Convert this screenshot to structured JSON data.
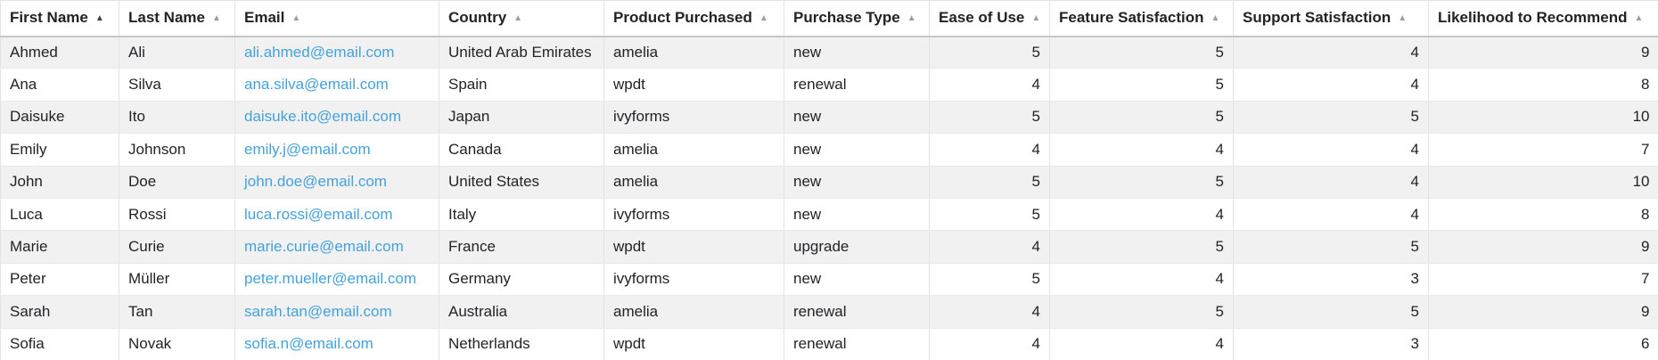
{
  "table": {
    "columns": [
      {
        "label": "First Name",
        "type": "text",
        "sort_icon": "asc",
        "sort_active": true
      },
      {
        "label": "Last Name",
        "type": "text",
        "sort_icon": "asc",
        "sort_active": false
      },
      {
        "label": "Email",
        "type": "link",
        "sort_icon": "asc",
        "sort_active": false
      },
      {
        "label": "Country",
        "type": "text",
        "sort_icon": "asc",
        "sort_active": false
      },
      {
        "label": "Product Purchased",
        "type": "text",
        "sort_icon": "asc",
        "sort_active": false
      },
      {
        "label": "Purchase Type",
        "type": "text",
        "sort_icon": "asc",
        "sort_active": false
      },
      {
        "label": "Ease of Use",
        "type": "number",
        "sort_icon": "asc",
        "sort_active": false
      },
      {
        "label": "Feature Satisfaction",
        "type": "number",
        "sort_icon": "asc",
        "sort_active": false
      },
      {
        "label": "Support Satisfaction",
        "type": "number",
        "sort_icon": "asc",
        "sort_active": false
      },
      {
        "label": "Likelihood to Recommend",
        "type": "number",
        "sort_icon": "asc",
        "sort_active": false
      }
    ],
    "rows": [
      [
        "Ahmed",
        "Ali",
        "ali.ahmed@email.com",
        "United Arab Emirates",
        "amelia",
        "new",
        5,
        5,
        4,
        9
      ],
      [
        "Ana",
        "Silva",
        "ana.silva@email.com",
        "Spain",
        "wpdt",
        "renewal",
        4,
        5,
        4,
        8
      ],
      [
        "Daisuke",
        "Ito",
        "daisuke.ito@email.com",
        "Japan",
        "ivyforms",
        "new",
        5,
        5,
        5,
        10
      ],
      [
        "Emily",
        "Johnson",
        "emily.j@email.com",
        "Canada",
        "amelia",
        "new",
        4,
        4,
        4,
        7
      ],
      [
        "John",
        "Doe",
        "john.doe@email.com",
        "United States",
        "amelia",
        "new",
        5,
        5,
        4,
        10
      ],
      [
        "Luca",
        "Rossi",
        "luca.rossi@email.com",
        "Italy",
        "ivyforms",
        "new",
        5,
        4,
        4,
        8
      ],
      [
        "Marie",
        "Curie",
        "marie.curie@email.com",
        "France",
        "wpdt",
        "upgrade",
        4,
        5,
        5,
        9
      ],
      [
        "Peter",
        "Müller",
        "peter.mueller@email.com",
        "Germany",
        "ivyforms",
        "new",
        5,
        4,
        3,
        7
      ],
      [
        "Sarah",
        "Tan",
        "sarah.tan@email.com",
        "Australia",
        "amelia",
        "renewal",
        4,
        5,
        5,
        9
      ],
      [
        "Sofia",
        "Novak",
        "sofia.n@email.com",
        "Netherlands",
        "wpdt",
        "renewal",
        4,
        4,
        3,
        6
      ]
    ]
  },
  "icons": {
    "sort_ascending": "▲"
  },
  "colors": {
    "link": "#44a2da",
    "row_alt": "#f1f1f1",
    "sort_active": "#3c4043",
    "sort_inactive": "#9e9e9e"
  }
}
